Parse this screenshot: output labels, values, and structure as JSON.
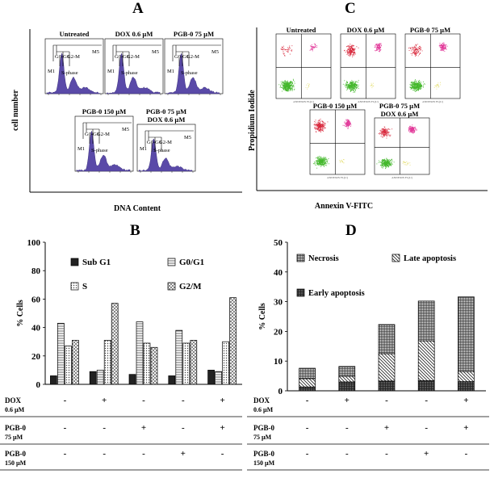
{
  "panels": {
    "a": "A",
    "b": "B",
    "c": "C",
    "d": "D"
  },
  "panel_a": {
    "ylabel": "cell number",
    "xlabel": "DNA Content",
    "histograms": [
      {
        "title_1": "Untreated",
        "title_2": ""
      },
      {
        "title_1": "DOX 0.6 µM",
        "title_2": ""
      },
      {
        "title_1": "PGB-0 75 µM",
        "title_2": ""
      },
      {
        "title_1": "PGB-0 150 µM",
        "title_2": ""
      },
      {
        "title_1": "PGB-0 75 µM",
        "title_2": "DOX 0.6 µM"
      }
    ],
    "gate_labels": {
      "m1": "M1",
      "m5": "M5",
      "g0g1": "G0-G1",
      "g2m": "G2-M",
      "s": "S-phase"
    }
  },
  "panel_c": {
    "ylabel": "Propidium Iodide",
    "xlabel": "Annexin V-FITC",
    "plots": [
      {
        "title_1": "Untreated",
        "title_2": ""
      },
      {
        "title_1": "DOX 0.6 µM",
        "title_2": ""
      },
      {
        "title_1": "PGB-0 75 µM",
        "title_2": ""
      },
      {
        "title_1": "PGB-0 150 µM",
        "title_2": ""
      },
      {
        "title_1": "PGB-0 75 µM",
        "title_2": "DOX 0.6 µM"
      }
    ],
    "axis_tiny": "ANNEXIN FL(U)"
  },
  "colors": {
    "histogram_fill": "#5a4aa8",
    "dot_green": "#44b82c",
    "dot_red": "#d8263a",
    "dot_pink": "#e23a9a",
    "dot_yellow": "#e6e07a"
  },
  "chart_data": [
    {
      "type": "bar",
      "title": "",
      "ylabel": "% Cells",
      "xlabel": "",
      "ylim": [
        0,
        100
      ],
      "yticks": [
        0,
        20,
        40,
        60,
        80,
        100
      ],
      "categories": [
        "",
        "",
        "",
        "",
        ""
      ],
      "series": [
        {
          "name": "Sub G1",
          "values": [
            6,
            9,
            7,
            6,
            10
          ]
        },
        {
          "name": "G0/G1",
          "values": [
            43,
            10,
            44,
            38,
            9
          ]
        },
        {
          "name": "S",
          "values": [
            27,
            31,
            29,
            29,
            30
          ]
        },
        {
          "name": "G2/M",
          "values": [
            31,
            57,
            26,
            31,
            61
          ]
        }
      ],
      "legend": "top-right",
      "treatment_rows": [
        {
          "label_1": "DOX",
          "label_2": "0.6 µM",
          "signs": [
            "-",
            "+",
            "-",
            "-",
            "+"
          ]
        },
        {
          "label_1": "PGB-0",
          "label_2": "75 µM",
          "signs": [
            "-",
            "-",
            "+",
            "-",
            "+"
          ]
        },
        {
          "label_1": "PGB-0",
          "label_2": "150 µM",
          "signs": [
            "-",
            "-",
            "-",
            "+",
            "-"
          ]
        }
      ]
    },
    {
      "type": "bar",
      "stacked": true,
      "title": "",
      "ylabel": "% Cells",
      "xlabel": "",
      "ylim": [
        0,
        50
      ],
      "yticks": [
        0,
        10,
        20,
        30,
        40,
        50
      ],
      "categories": [
        "",
        "",
        "",
        "",
        ""
      ],
      "series": [
        {
          "name": "Early apoptosis",
          "values": [
            1.3,
            3.0,
            3.3,
            3.4,
            3.1
          ]
        },
        {
          "name": "Late apoptosis",
          "values": [
            2.8,
            1.9,
            9.2,
            13.4,
            3.4
          ]
        },
        {
          "name": "Necrosis",
          "values": [
            3.5,
            3.3,
            9.8,
            13.4,
            25.1
          ]
        }
      ],
      "legend": "top",
      "treatment_rows": [
        {
          "label_1": "DOX",
          "label_2": "0.6 µM",
          "signs": [
            "-",
            "+",
            "-",
            "-",
            "+"
          ]
        },
        {
          "label_1": "PGB-0",
          "label_2": "75 µM",
          "signs": [
            "-",
            "-",
            "+",
            "-",
            "+"
          ]
        },
        {
          "label_1": "PGB-0",
          "label_2": "150 µM",
          "signs": [
            "-",
            "-",
            "-",
            "+",
            "-"
          ]
        }
      ]
    }
  ]
}
